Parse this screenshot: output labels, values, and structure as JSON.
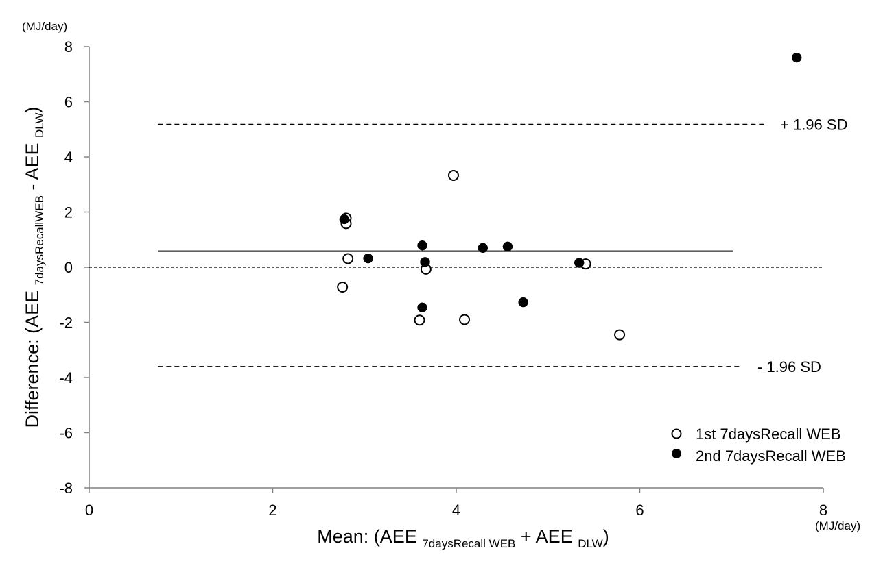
{
  "chart_data": {
    "type": "scatter",
    "title": "",
    "xlabel": {
      "main": "Mean: (AEE ",
      "sub1": "7daysRecall WEB",
      "mid": " + AEE ",
      "sub2": "DLW",
      "end": ")"
    },
    "ylabel": {
      "main": "Difference:  (AEE ",
      "sub1": "7daysRecallWEB",
      "mid": " - AEE ",
      "sub2": "DLW",
      "end": ")"
    },
    "x_unit": "(MJ/day)",
    "y_unit": "(MJ/day)",
    "xlim": [
      0,
      8
    ],
    "ylim": [
      -8,
      8
    ],
    "x_ticks": [
      0,
      2,
      4,
      6,
      8
    ],
    "y_ticks": [
      -8,
      -6,
      -4,
      -2,
      0,
      2,
      4,
      6,
      8
    ],
    "grid": false,
    "legend_position": "bottom-right",
    "series": [
      {
        "name": "1st  7daysRecall WEB",
        "marker": "open-circle",
        "points": [
          [
            2.8,
            1.78
          ],
          [
            2.8,
            1.58
          ],
          [
            2.82,
            0.31
          ],
          [
            2.76,
            -0.72
          ],
          [
            3.97,
            3.33
          ],
          [
            3.67,
            -0.07
          ],
          [
            3.6,
            -1.92
          ],
          [
            4.09,
            -1.9
          ],
          [
            5.41,
            0.12
          ],
          [
            5.78,
            -2.45
          ]
        ]
      },
      {
        "name": "2nd  7daysRecall WEB",
        "marker": "filled-circle",
        "points": [
          [
            2.78,
            1.74
          ],
          [
            3.04,
            0.32
          ],
          [
            3.63,
            0.79
          ],
          [
            3.66,
            0.19
          ],
          [
            3.63,
            -1.46
          ],
          [
            4.29,
            0.7
          ],
          [
            4.56,
            0.75
          ],
          [
            4.73,
            -1.27
          ],
          [
            5.34,
            0.16
          ],
          [
            7.71,
            7.6
          ]
        ]
      }
    ],
    "reference_lines": [
      {
        "name": "mean-difference",
        "y": 0.58,
        "x_range": [
          0.75,
          7.02
        ],
        "style": "solid"
      },
      {
        "name": "zero-line",
        "y": 0,
        "x_range": [
          0,
          8
        ],
        "style": "dotted"
      },
      {
        "name": "upper-limit",
        "y": 5.18,
        "x_range": [
          0.75,
          7.38
        ],
        "style": "dashed",
        "label": "+ 1.96 SD"
      },
      {
        "name": "lower-limit",
        "y": -3.6,
        "x_range": [
          0.75,
          7.1
        ],
        "style": "dashed",
        "label": "- 1.96 SD"
      }
    ],
    "colors": {
      "axis": "#808080",
      "marker": "#000000",
      "line": "#000000"
    }
  }
}
